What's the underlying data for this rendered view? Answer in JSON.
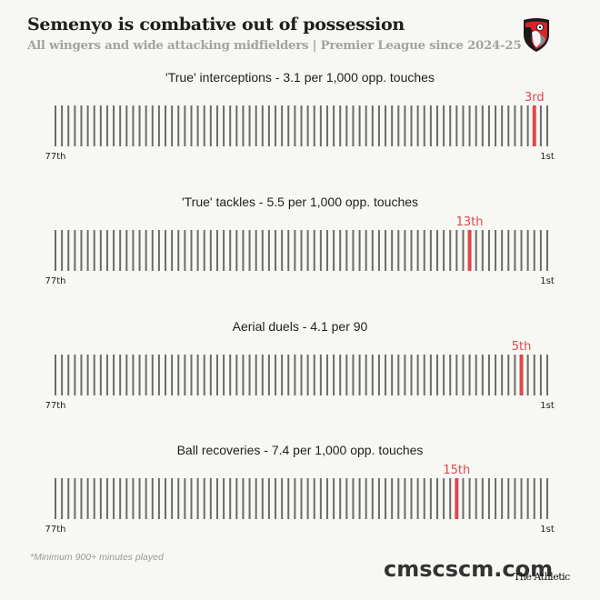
{
  "header": {
    "title": "Semenyo is combative out of possession",
    "subtitle": "All wingers and wide attacking midfielders | Premier League since 2024-25",
    "crest_icon": "afc-bournemouth-crest-icon"
  },
  "colors": {
    "bar": "#6b6b6b",
    "highlight": "#e0474c",
    "background": "#f7f7f3"
  },
  "chart_data": [
    {
      "type": "bar",
      "title": "'True' interceptions - 3.1 per 1,000 opp. touches",
      "total_players": 77,
      "highlight_rank": 3,
      "highlight_label": "3rd",
      "left_label": "77th",
      "right_label": "1st"
    },
    {
      "type": "bar",
      "title": "'True' tackles - 5.5 per 1,000 opp. touches",
      "total_players": 77,
      "highlight_rank": 13,
      "highlight_label": "13th",
      "left_label": "77th",
      "right_label": "1st"
    },
    {
      "type": "bar",
      "title": "Aerial duels - 4.1 per 90",
      "total_players": 77,
      "highlight_rank": 5,
      "highlight_label": "5th",
      "left_label": "77th",
      "right_label": "1st"
    },
    {
      "type": "bar",
      "title": "Ball recoveries - 7.4 per 1,000 opp. touches",
      "total_players": 77,
      "highlight_rank": 15,
      "highlight_label": "15th",
      "left_label": "77th",
      "right_label": "1st"
    }
  ],
  "footer": {
    "footnote": "*Minimum 900+ minutes played",
    "watermark": "cmscscm.com",
    "brand": "The Athletic"
  }
}
